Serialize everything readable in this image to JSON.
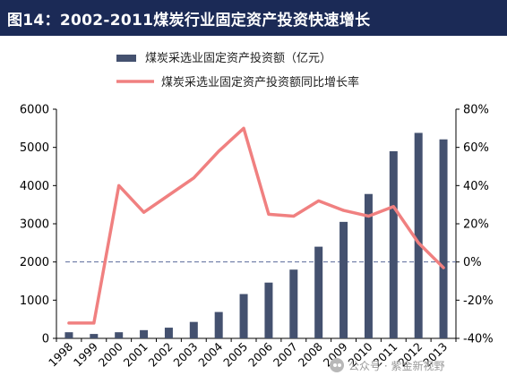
{
  "header": {
    "title": "图14：2002-2011煤炭行业固定资产投资快速增长"
  },
  "watermark": {
    "text": "公众号 · 紫金新视野"
  },
  "chart_data": {
    "type": "bar+line",
    "categories": [
      "1998",
      "1999",
      "2000",
      "2001",
      "2002",
      "2003",
      "2004",
      "2005",
      "2006",
      "2007",
      "2008",
      "2009",
      "2010",
      "2011",
      "2012",
      "2013"
    ],
    "series": [
      {
        "name": "煤炭采选业固定资产投资额（亿元）",
        "type": "bar",
        "axis": "left",
        "color": "#44516f",
        "values": [
          160,
          115,
          160,
          215,
          280,
          430,
          690,
          1160,
          1460,
          1800,
          2400,
          3050,
          3780,
          4900,
          5380,
          5210
        ]
      },
      {
        "name": "煤炭采选业固定资产投资额同比增长率",
        "type": "line",
        "axis": "right",
        "color": "#f08080",
        "values": [
          -32,
          -32,
          40,
          26,
          35,
          44,
          58,
          70,
          25,
          24,
          32,
          27,
          24,
          29,
          10,
          -3
        ]
      }
    ],
    "y_left": {
      "min": 0,
      "max": 6000,
      "ticks": [
        0,
        1000,
        2000,
        3000,
        4000,
        5000,
        6000
      ]
    },
    "y_right": {
      "min": -40,
      "max": 80,
      "ticks": [
        -40,
        -20,
        0,
        20,
        40,
        60,
        80
      ],
      "tick_format": "percent"
    },
    "reference_line": {
      "axis": "right",
      "value": 0,
      "style": "dashed",
      "color": "#5a6a9a"
    },
    "legend": {
      "position": "top-center"
    },
    "grid": false
  }
}
